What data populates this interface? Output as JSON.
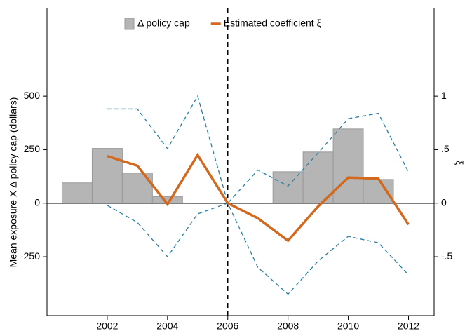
{
  "chart_data": {
    "type": "bar-line",
    "ylabel": "Mean exposure X Δ policy cap (dollars)",
    "y2label": "ξ",
    "x": [
      2001,
      2002,
      2003,
      2004,
      2005,
      2006,
      2007,
      2008,
      2009,
      2010,
      2011,
      2012
    ],
    "xlim": [
      2000,
      2012.85
    ],
    "xticks": [
      2002,
      2004,
      2006,
      2008,
      2010,
      2012
    ],
    "ylim": [
      -525,
      910
    ],
    "yticks": [
      -250,
      0,
      250,
      500
    ],
    "y2lim": [
      -1.05,
      1.82
    ],
    "y2ticks": [
      {
        "value": -0.5,
        "label": "-.5"
      },
      0,
      {
        "value": 0.5,
        "label": ".5"
      },
      1
    ],
    "vline": 2006,
    "series": [
      {
        "name": "Δ policy cap",
        "kind": "bar",
        "color": "#b5b5b5",
        "values": [
          95,
          256,
          141,
          30,
          null,
          null,
          null,
          147,
          239,
          347,
          111,
          null
        ]
      },
      {
        "name": "Estimated coefficient ξ",
        "kind": "line",
        "axis": "y2",
        "color": "#d2691e",
        "values": [
          null,
          0.44,
          0.35,
          -0.01,
          0.45,
          0,
          -0.14,
          -0.35,
          -0.03,
          0.24,
          0.23,
          -0.2
        ]
      }
    ],
    "ci": {
      "color": "#2a7fa8",
      "axis": "y2",
      "upper": [
        null,
        0.88,
        0.88,
        0.51,
        1.0,
        0,
        0.31,
        0.16,
        0.47,
        0.79,
        0.84,
        0.29
      ],
      "lower": [
        null,
        -0.02,
        -0.18,
        -0.5,
        -0.1,
        0,
        -0.6,
        -0.85,
        -0.54,
        -0.31,
        -0.37,
        -0.67
      ]
    }
  }
}
